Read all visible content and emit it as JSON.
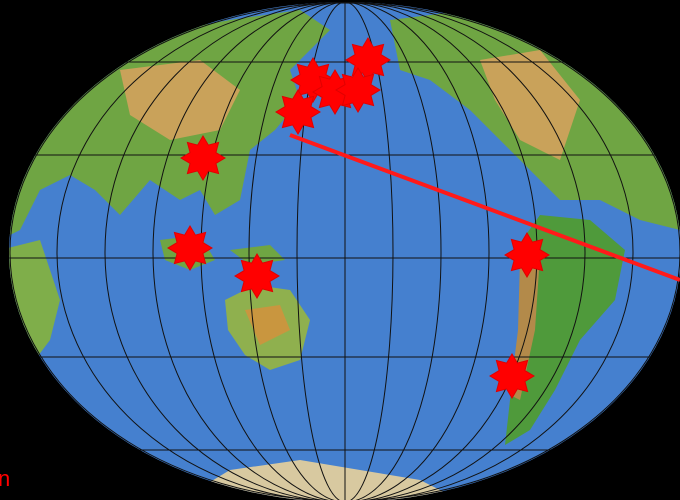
{
  "annotation": {
    "text": "n"
  }
}
